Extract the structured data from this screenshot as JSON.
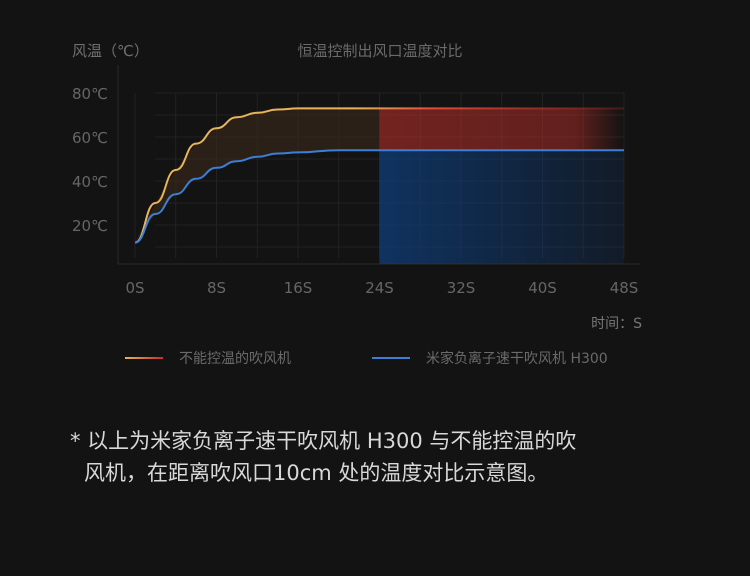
{
  "chart_data": {
    "type": "line",
    "title": "恒温控制出风口温度对比",
    "ylabel": "风温（℃）",
    "xlabel": "时间：S",
    "x": [
      0,
      2,
      4,
      6,
      8,
      10,
      12,
      14,
      16,
      20,
      24,
      28,
      32,
      36,
      40,
      44,
      48
    ],
    "xlim": [
      0,
      48
    ],
    "ylim": [
      0,
      90
    ],
    "xticks": [
      "0S",
      "8S",
      "16S",
      "24S",
      "32S",
      "40S",
      "48S"
    ],
    "xtick_values": [
      0,
      8,
      16,
      24,
      32,
      40,
      48
    ],
    "yticks": [
      "20℃",
      "40℃",
      "60℃",
      "80℃"
    ],
    "ytick_values": [
      20,
      40,
      60,
      80
    ],
    "grid": true,
    "legend_position": "bottom",
    "highlight_from_x": 24,
    "series": [
      {
        "name": "不能控温的吹风机",
        "color": "#e8b45a",
        "fill_color": "#c0302a",
        "values": [
          12,
          30,
          45,
          57,
          64,
          69,
          71,
          72.5,
          73,
          73,
          73,
          73,
          73,
          73,
          73,
          73,
          73
        ]
      },
      {
        "name": "米家负离子速干吹风机 H300",
        "color": "#3d7fd6",
        "fill_color": "#0e3d7a",
        "values": [
          12,
          25,
          34,
          41,
          46,
          49,
          51,
          52.5,
          53,
          54,
          54,
          54,
          54,
          54,
          54,
          54,
          54
        ]
      }
    ]
  },
  "note": {
    "line1": "* 以上为米家负离子速干吹风机 H300 与不能控温的吹",
    "line2": "风机，在距离吹风口10cm 处的温度对比示意图。"
  }
}
